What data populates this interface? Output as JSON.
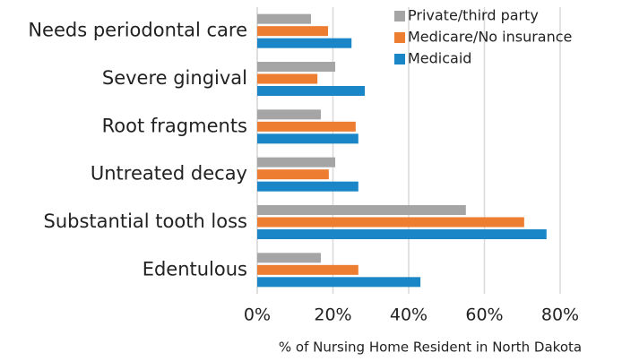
{
  "chart_data": {
    "type": "hbar",
    "categories": [
      "Needs periodontal care",
      "Severe gingival",
      "Root fragments",
      "Untreated decay",
      "Substantial tooth loss",
      "Edentulous"
    ],
    "series": [
      {
        "name": "Private/third party",
        "color": "#a5a5a5",
        "values": [
          14.2,
          20.6,
          16.8,
          20.6,
          55.1,
          16.8
        ]
      },
      {
        "name": "Medicare/No insurance",
        "color": "#ed7d31",
        "values": [
          18.7,
          15.9,
          26,
          18.9,
          70.5,
          26.7
        ]
      },
      {
        "name": "Medicaid",
        "color": "#1a86c8",
        "values": [
          24.9,
          28.4,
          26.7,
          26.7,
          76.4,
          43.1
        ]
      }
    ],
    "xlim": [
      0,
      80
    ],
    "xticks": [
      {
        "value": 0,
        "label": "0%"
      },
      {
        "value": 20,
        "label": "20%"
      },
      {
        "value": 40,
        "label": "40%"
      },
      {
        "value": 60,
        "label": "60%"
      },
      {
        "value": 80,
        "label": "80%"
      }
    ],
    "xlabel": "% of Nursing Home Resident in North Dakota",
    "grid": true,
    "legend": "upper right"
  }
}
